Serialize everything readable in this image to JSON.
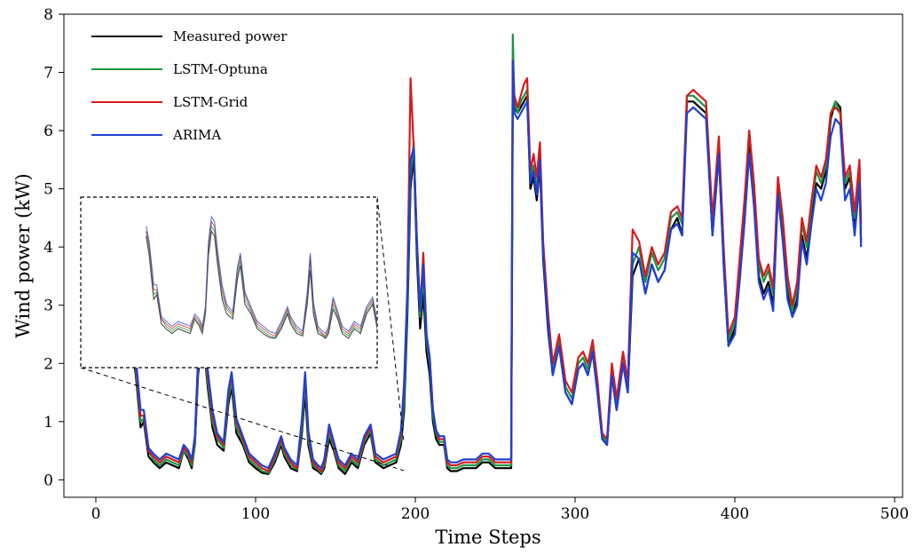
{
  "chart_data": {
    "type": "line",
    "xlabel": "Time Steps",
    "ylabel": "Wind power (kW)",
    "xlim": [
      -20,
      505
    ],
    "ylim": [
      -0.3,
      8
    ],
    "xticks": [
      0,
      100,
      200,
      300,
      400,
      500
    ],
    "yticks": [
      0,
      1,
      2,
      3,
      4,
      5,
      6,
      7,
      8
    ],
    "grid": false,
    "legend_position": "top-left",
    "inset": {
      "x_range": [
        -20,
        175
      ],
      "position": "left",
      "connected_to": "main plot"
    },
    "series": [
      {
        "name": "Measured power",
        "color": "#000000",
        "x": [
          0,
          5,
          10,
          15,
          20,
          23,
          25,
          28,
          30,
          33,
          36,
          40,
          44,
          48,
          52,
          55,
          58,
          60,
          62,
          64,
          66,
          68,
          70,
          73,
          76,
          80,
          83,
          85,
          88,
          92,
          96,
          100,
          104,
          108,
          112,
          116,
          118,
          122,
          126,
          129,
          131,
          133,
          136,
          139,
          141,
          143,
          146,
          149,
          152,
          156,
          160,
          164,
          168,
          172,
          175,
          180,
          184,
          188,
          191,
          193,
          195,
          197,
          199,
          201,
          203,
          205,
          207,
          209,
          211,
          213,
          215,
          218,
          220,
          222,
          226,
          230,
          234,
          238,
          242,
          246,
          250,
          254,
          257,
          260,
          261,
          262,
          264,
          266,
          268,
          270,
          272,
          274,
          276,
          278,
          280,
          283,
          286,
          290,
          294,
          298,
          302,
          305,
          308,
          311,
          314,
          317,
          320,
          323,
          326,
          330,
          333,
          336,
          340,
          344,
          348,
          352,
          356,
          360,
          364,
          367,
          370,
          374,
          378,
          382,
          386,
          390,
          393,
          396,
          400,
          403,
          406,
          409,
          412,
          415,
          418,
          421,
          424,
          427,
          430,
          433,
          436,
          439,
          442,
          445,
          448,
          451,
          454,
          457,
          460,
          463,
          466,
          469,
          472,
          475,
          478,
          479
        ],
        "values": [
          null,
          null,
          null,
          null,
          null,
          2.2,
          1.8,
          0.9,
          1.0,
          0.4,
          0.3,
          0.2,
          0.3,
          0.25,
          0.2,
          0.5,
          0.35,
          0.2,
          0.6,
          1.8,
          2.3,
          2.2,
          1.6,
          0.9,
          0.6,
          0.5,
          1.3,
          1.6,
          0.8,
          0.6,
          0.3,
          0.2,
          0.12,
          0.1,
          0.3,
          0.6,
          0.4,
          0.2,
          0.15,
          0.8,
          1.5,
          0.6,
          0.2,
          0.15,
          0.1,
          0.2,
          0.7,
          0.5,
          0.2,
          0.1,
          0.3,
          0.2,
          0.6,
          0.8,
          0.3,
          0.2,
          0.25,
          0.3,
          0.6,
          1.2,
          2.8,
          5.0,
          5.6,
          3.8,
          2.6,
          3.2,
          2.2,
          1.8,
          1.0,
          0.7,
          0.6,
          0.6,
          0.2,
          0.15,
          0.15,
          0.2,
          0.2,
          0.2,
          0.3,
          0.3,
          0.2,
          0.2,
          0.2,
          0.2,
          6.5,
          6.4,
          6.3,
          6.4,
          6.5,
          6.6,
          5.0,
          5.2,
          4.8,
          5.4,
          3.8,
          2.6,
          1.8,
          2.3,
          1.5,
          1.3,
          1.9,
          2.0,
          1.8,
          2.2,
          1.5,
          0.7,
          0.6,
          1.8,
          1.2,
          2.0,
          1.5,
          3.5,
          3.8,
          3.2,
          3.7,
          3.4,
          3.6,
          4.3,
          4.5,
          4.2,
          6.5,
          6.5,
          6.4,
          6.3,
          4.2,
          5.6,
          3.7,
          2.3,
          2.6,
          3.5,
          4.5,
          5.8,
          4.8,
          3.5,
          3.2,
          3.4,
          3.0,
          5.0,
          4.2,
          3.2,
          2.8,
          3.1,
          4.2,
          3.8,
          4.5,
          5.1,
          5.0,
          5.3,
          6.2,
          6.5,
          6.4,
          5.0,
          5.2,
          4.4,
          5.2,
          4.1
        ]
      },
      {
        "name": "LSTM-Optuna",
        "color": "#1a9641",
        "x": [
          0,
          5,
          10,
          15,
          20,
          23,
          25,
          28,
          30,
          33,
          36,
          40,
          44,
          48,
          52,
          55,
          58,
          60,
          62,
          64,
          66,
          68,
          70,
          73,
          76,
          80,
          83,
          85,
          88,
          92,
          96,
          100,
          104,
          108,
          112,
          116,
          118,
          122,
          126,
          129,
          131,
          133,
          136,
          139,
          141,
          143,
          146,
          149,
          152,
          156,
          160,
          164,
          168,
          172,
          175,
          180,
          184,
          188,
          191,
          193,
          195,
          197,
          199,
          201,
          203,
          205,
          207,
          209,
          211,
          213,
          215,
          218,
          220,
          222,
          226,
          230,
          234,
          238,
          242,
          246,
          250,
          254,
          257,
          260,
          261,
          262,
          264,
          266,
          268,
          270,
          272,
          274,
          276,
          278,
          280,
          283,
          286,
          290,
          294,
          298,
          302,
          305,
          308,
          311,
          314,
          317,
          320,
          323,
          326,
          330,
          333,
          336,
          340,
          344,
          348,
          352,
          356,
          360,
          364,
          367,
          370,
          374,
          378,
          382,
          386,
          390,
          393,
          396,
          400,
          403,
          406,
          409,
          412,
          415,
          418,
          421,
          424,
          427,
          430,
          433,
          436,
          439,
          442,
          445,
          448,
          451,
          454,
          457,
          460,
          463,
          466,
          469,
          472,
          475,
          478,
          479
        ],
        "values": [
          null,
          null,
          null,
          null,
          null,
          2.3,
          1.9,
          1.0,
          1.05,
          0.5,
          0.35,
          0.25,
          0.35,
          0.3,
          0.25,
          0.5,
          0.4,
          0.25,
          0.6,
          1.9,
          2.4,
          2.3,
          1.7,
          1.0,
          0.7,
          0.55,
          1.4,
          1.7,
          0.9,
          0.65,
          0.35,
          0.25,
          0.15,
          0.12,
          0.35,
          0.65,
          0.45,
          0.25,
          0.18,
          0.9,
          1.7,
          0.7,
          0.25,
          0.18,
          0.12,
          0.25,
          0.8,
          0.55,
          0.25,
          0.15,
          0.35,
          0.25,
          0.65,
          0.85,
          0.35,
          0.25,
          0.3,
          0.35,
          0.7,
          1.4,
          3.0,
          5.2,
          5.8,
          4.0,
          2.8,
          3.5,
          2.4,
          2.0,
          1.1,
          0.8,
          0.65,
          0.65,
          0.25,
          0.2,
          0.2,
          0.25,
          0.25,
          0.25,
          0.35,
          0.35,
          0.25,
          0.25,
          0.25,
          0.25,
          7.65,
          6.5,
          6.3,
          6.5,
          6.6,
          6.7,
          5.2,
          5.4,
          5.0,
          5.6,
          4.0,
          2.8,
          1.9,
          2.4,
          1.6,
          1.4,
          2.0,
          2.1,
          1.9,
          2.3,
          1.6,
          0.75,
          0.65,
          1.9,
          1.3,
          2.1,
          1.6,
          3.7,
          4.0,
          3.4,
          3.9,
          3.6,
          3.8,
          4.5,
          4.6,
          4.4,
          6.6,
          6.6,
          6.5,
          6.4,
          4.4,
          5.8,
          3.9,
          2.4,
          2.7,
          3.7,
          4.7,
          6.0,
          5.0,
          3.7,
          3.4,
          3.6,
          3.2,
          5.2,
          4.4,
          3.4,
          2.9,
          3.3,
          4.4,
          4.0,
          4.7,
          5.3,
          5.1,
          5.4,
          6.3,
          6.5,
          6.3,
          5.1,
          5.3,
          4.5,
          5.4,
          4.3
        ]
      },
      {
        "name": "LSTM-Grid",
        "color": "#d7191c",
        "x": [
          0,
          5,
          10,
          15,
          20,
          23,
          25,
          28,
          30,
          33,
          36,
          40,
          44,
          48,
          52,
          55,
          58,
          60,
          62,
          64,
          66,
          68,
          70,
          73,
          76,
          80,
          83,
          85,
          88,
          92,
          96,
          100,
          104,
          108,
          112,
          116,
          118,
          122,
          126,
          129,
          131,
          133,
          136,
          139,
          141,
          143,
          146,
          149,
          152,
          156,
          160,
          164,
          168,
          172,
          175,
          180,
          184,
          188,
          191,
          193,
          195,
          197,
          199,
          201,
          203,
          205,
          207,
          209,
          211,
          213,
          215,
          218,
          220,
          222,
          226,
          230,
          234,
          238,
          242,
          246,
          250,
          254,
          257,
          260,
          261,
          262,
          264,
          266,
          268,
          270,
          272,
          274,
          276,
          278,
          280,
          283,
          286,
          290,
          294,
          298,
          302,
          305,
          308,
          311,
          314,
          317,
          320,
          323,
          326,
          330,
          333,
          336,
          340,
          344,
          348,
          352,
          356,
          360,
          364,
          367,
          370,
          374,
          378,
          382,
          386,
          390,
          393,
          396,
          400,
          403,
          406,
          409,
          412,
          415,
          418,
          421,
          424,
          427,
          430,
          433,
          436,
          439,
          442,
          445,
          448,
          451,
          454,
          457,
          460,
          463,
          466,
          469,
          472,
          475,
          478,
          479
        ],
        "values": [
          null,
          null,
          null,
          null,
          null,
          2.3,
          2.0,
          1.1,
          1.1,
          0.5,
          0.4,
          0.3,
          0.4,
          0.35,
          0.3,
          0.55,
          0.45,
          0.3,
          0.7,
          2.0,
          2.5,
          2.4,
          1.8,
          1.1,
          0.75,
          0.6,
          1.5,
          1.8,
          1.0,
          0.7,
          0.4,
          0.3,
          0.2,
          0.15,
          0.4,
          0.7,
          0.5,
          0.3,
          0.2,
          1.0,
          1.8,
          0.8,
          0.3,
          0.2,
          0.15,
          0.3,
          0.9,
          0.6,
          0.3,
          0.2,
          0.4,
          0.3,
          0.7,
          0.9,
          0.4,
          0.3,
          0.35,
          0.4,
          0.8,
          1.7,
          3.3,
          6.9,
          5.7,
          4.1,
          2.9,
          3.9,
          2.5,
          2.1,
          1.2,
          0.85,
          0.7,
          0.7,
          0.3,
          0.25,
          0.25,
          0.3,
          0.3,
          0.3,
          0.4,
          0.4,
          0.3,
          0.3,
          0.3,
          0.3,
          7.2,
          6.6,
          6.4,
          6.6,
          6.8,
          6.9,
          5.3,
          5.6,
          5.2,
          5.8,
          4.1,
          2.9,
          2.0,
          2.5,
          1.7,
          1.5,
          2.1,
          2.2,
          2.0,
          2.4,
          1.7,
          0.8,
          0.7,
          2.0,
          1.4,
          2.2,
          1.7,
          4.3,
          4.1,
          3.5,
          4.0,
          3.7,
          3.9,
          4.6,
          4.7,
          4.5,
          6.6,
          6.7,
          6.6,
          6.5,
          4.5,
          5.9,
          4.0,
          2.5,
          2.8,
          3.8,
          4.8,
          6.0,
          5.1,
          3.8,
          3.5,
          3.7,
          3.3,
          5.2,
          4.5,
          3.5,
          3.0,
          3.4,
          4.5,
          4.1,
          4.8,
          5.4,
          5.2,
          5.5,
          6.3,
          6.4,
          6.3,
          5.2,
          5.4,
          4.6,
          5.5,
          4.4
        ]
      },
      {
        "name": "ARIMA",
        "color": "#1f3fd6",
        "x": [
          0,
          5,
          10,
          15,
          20,
          23,
          25,
          28,
          30,
          33,
          36,
          40,
          44,
          48,
          52,
          55,
          58,
          60,
          62,
          64,
          66,
          68,
          70,
          73,
          76,
          80,
          83,
          85,
          88,
          92,
          96,
          100,
          104,
          108,
          112,
          116,
          118,
          122,
          126,
          129,
          131,
          133,
          136,
          139,
          141,
          143,
          146,
          149,
          152,
          156,
          160,
          164,
          168,
          172,
          175,
          180,
          184,
          188,
          191,
          193,
          195,
          197,
          199,
          201,
          203,
          205,
          207,
          209,
          211,
          213,
          215,
          218,
          220,
          222,
          226,
          230,
          234,
          238,
          242,
          246,
          250,
          254,
          257,
          260,
          261,
          262,
          264,
          266,
          268,
          270,
          272,
          274,
          276,
          278,
          280,
          283,
          286,
          290,
          294,
          298,
          302,
          305,
          308,
          311,
          314,
          317,
          320,
          323,
          326,
          330,
          333,
          336,
          340,
          344,
          348,
          352,
          356,
          360,
          364,
          367,
          370,
          374,
          378,
          382,
          386,
          390,
          393,
          396,
          400,
          403,
          406,
          409,
          412,
          415,
          418,
          421,
          424,
          427,
          430,
          433,
          436,
          439,
          442,
          445,
          448,
          451,
          454,
          457,
          460,
          463,
          466,
          469,
          472,
          475,
          478,
          479
        ],
        "values": [
          null,
          null,
          null,
          null,
          null,
          2.4,
          2.1,
          1.2,
          1.2,
          0.55,
          0.45,
          0.35,
          0.45,
          0.4,
          0.35,
          0.6,
          0.5,
          0.35,
          0.75,
          2.1,
          2.6,
          2.5,
          1.9,
          1.2,
          0.8,
          0.65,
          1.55,
          1.85,
          1.05,
          0.75,
          0.45,
          0.35,
          0.25,
          0.2,
          0.45,
          0.75,
          0.55,
          0.35,
          0.25,
          1.05,
          1.85,
          0.85,
          0.35,
          0.25,
          0.2,
          0.35,
          0.95,
          0.65,
          0.35,
          0.25,
          0.45,
          0.35,
          0.75,
          0.95,
          0.45,
          0.35,
          0.4,
          0.45,
          0.85,
          1.6,
          3.2,
          5.5,
          5.7,
          4.1,
          2.9,
          3.7,
          2.5,
          2.1,
          1.2,
          0.85,
          0.75,
          0.75,
          0.35,
          0.3,
          0.3,
          0.35,
          0.35,
          0.35,
          0.45,
          0.45,
          0.35,
          0.35,
          0.35,
          0.35,
          7.2,
          6.3,
          6.2,
          6.3,
          6.4,
          6.5,
          5.1,
          5.3,
          4.9,
          5.5,
          3.9,
          2.7,
          1.8,
          2.3,
          1.5,
          1.3,
          1.9,
          2.0,
          1.8,
          2.2,
          1.5,
          0.7,
          0.6,
          1.8,
          1.2,
          2.0,
          1.5,
          3.9,
          3.8,
          3.2,
          3.7,
          3.4,
          3.6,
          4.3,
          4.4,
          4.2,
          6.3,
          6.4,
          6.3,
          6.2,
          4.2,
          5.6,
          3.7,
          2.3,
          2.5,
          3.4,
          4.4,
          5.6,
          4.7,
          3.4,
          3.1,
          3.3,
          2.9,
          4.9,
          4.1,
          3.1,
          2.8,
          3.0,
          4.1,
          3.7,
          4.4,
          5.0,
          4.8,
          5.1,
          5.9,
          6.2,
          6.1,
          4.8,
          5.0,
          4.2,
          5.1,
          4.0
        ]
      }
    ]
  }
}
